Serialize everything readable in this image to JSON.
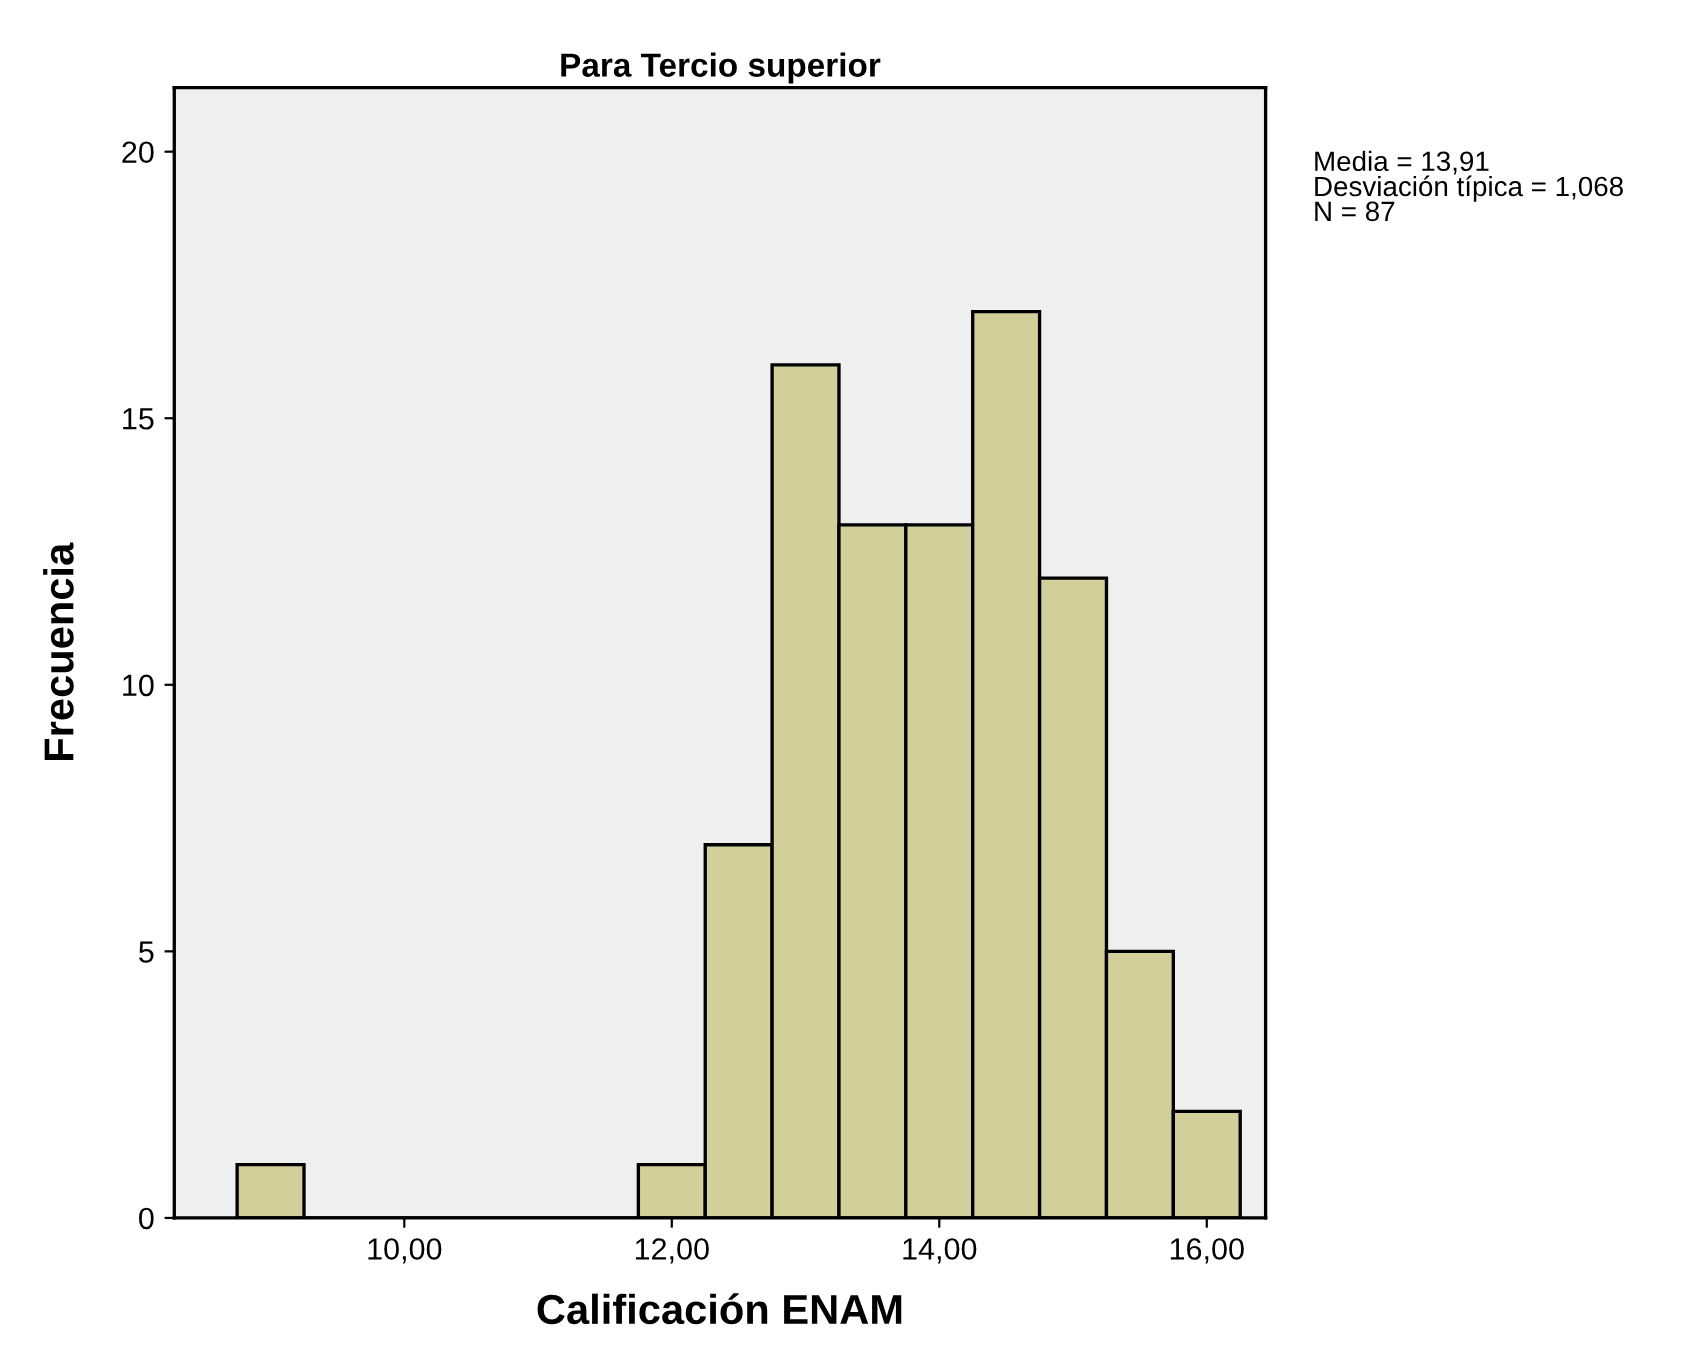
{
  "chart_data": {
    "type": "histogram",
    "title": "Para Tercio superior",
    "xlabel": "Calificación ENAM",
    "ylabel": "Frecuencia",
    "bins": [
      8.75,
      9.25,
      9.75,
      10.25,
      10.75,
      11.25,
      11.75,
      12.25,
      12.75,
      13.25,
      13.75,
      14.25,
      14.75,
      15.25,
      15.75,
      16.25
    ],
    "values": [
      1,
      0,
      0,
      0,
      0,
      0,
      1,
      7,
      16,
      13,
      13,
      17,
      12,
      5,
      2
    ],
    "color": "#d3cf9a",
    "xlim": [
      8.28,
      16.44
    ],
    "xticks": [
      {
        "value": 10,
        "label": "10,00"
      },
      {
        "value": 12,
        "label": "12,00"
      },
      {
        "value": 14,
        "label": "14,00"
      },
      {
        "value": 16,
        "label": "16,00"
      }
    ],
    "ylim": [
      0,
      21.2
    ],
    "yticks": [
      0,
      5,
      10,
      15,
      20
    ],
    "grid": false,
    "legend": false,
    "annotations": [
      "Media = 13,91\nDesviación típica = 1,068\nN = 87"
    ]
  }
}
